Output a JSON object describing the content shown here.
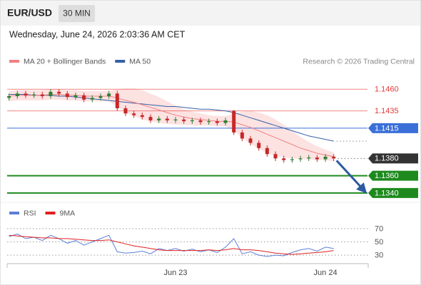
{
  "header": {
    "symbol": "EUR/USD",
    "interval": "30 MIN",
    "timestamp": "Wednesday, June 24, 2026 2:03:36 AM CET"
  },
  "chart_data": [
    {
      "type": "candlestick",
      "credit": "Research © 2026 Trading Central",
      "up_color": "#2e7d32",
      "down_color": "#c62828",
      "open": [
        1.145,
        1.1452,
        1.1455,
        1.1453,
        1.1454,
        1.1452,
        1.1457,
        1.1455,
        1.1451,
        1.1453,
        1.1448,
        1.145,
        1.1452,
        1.1455,
        1.1438,
        1.1432,
        1.143,
        1.1428,
        1.1424,
        1.1426,
        1.1424,
        1.1425,
        1.1423,
        1.1424,
        1.1422,
        1.1423,
        1.1421,
        1.1435,
        1.141,
        1.1403,
        1.1398,
        1.1392,
        1.1385,
        1.138,
        1.1378,
        1.1379,
        1.138,
        1.1381,
        1.1379,
        1.1382
      ],
      "high": [
        1.1455,
        1.1458,
        1.1458,
        1.1457,
        1.1457,
        1.146,
        1.146,
        1.1458,
        1.1456,
        1.1456,
        1.1453,
        1.1455,
        1.1458,
        1.1458,
        1.1441,
        1.1435,
        1.1433,
        1.1431,
        1.1429,
        1.1429,
        1.1428,
        1.1428,
        1.1427,
        1.1427,
        1.1426,
        1.1426,
        1.1427,
        1.1436,
        1.1413,
        1.1406,
        1.1401,
        1.1395,
        1.1388,
        1.1383,
        1.1382,
        1.1383,
        1.1384,
        1.1384,
        1.1385,
        1.1385
      ],
      "low": [
        1.1447,
        1.1449,
        1.145,
        1.145,
        1.1449,
        1.1449,
        1.1452,
        1.1448,
        1.1448,
        1.1445,
        1.1445,
        1.1447,
        1.1449,
        1.1435,
        1.1429,
        1.1427,
        1.1425,
        1.1421,
        1.1421,
        1.1421,
        1.1421,
        1.142,
        1.142,
        1.1419,
        1.1419,
        1.1418,
        1.1418,
        1.1407,
        1.14,
        1.1395,
        1.1389,
        1.1382,
        1.1377,
        1.1375,
        1.1375,
        1.1376,
        1.1377,
        1.1376,
        1.1376,
        1.1377
      ],
      "close": [
        1.1452,
        1.1455,
        1.1453,
        1.1454,
        1.1452,
        1.1457,
        1.1455,
        1.1451,
        1.1453,
        1.1448,
        1.145,
        1.1452,
        1.1455,
        1.1438,
        1.1432,
        1.143,
        1.1428,
        1.1424,
        1.1426,
        1.1424,
        1.1425,
        1.1423,
        1.1424,
        1.1422,
        1.1423,
        1.1421,
        1.1424,
        1.141,
        1.1403,
        1.1398,
        1.1392,
        1.1385,
        1.138,
        1.1378,
        1.1379,
        1.138,
        1.1381,
        1.1379,
        1.1382,
        1.138
      ],
      "series": [
        {
          "name": "MA 20 + Bollinger Bands",
          "color": "#f08080",
          "band_color": "#fde2e2",
          "values": [
            1.1452,
            1.1453,
            1.1453,
            1.1453,
            1.1453,
            1.1454,
            1.1454,
            1.1453,
            1.1453,
            1.1452,
            1.1452,
            1.1452,
            1.1452,
            1.145,
            1.1447,
            1.1445,
            1.1442,
            1.1439,
            1.1436,
            1.1433,
            1.143,
            1.1428,
            1.1426,
            1.1425,
            1.1424,
            1.1423,
            1.1423,
            1.1422,
            1.1419,
            1.1416,
            1.1412,
            1.1408,
            1.1404,
            1.14,
            1.1396,
            1.1392,
            1.1389,
            1.1386,
            1.1384,
            1.1382
          ],
          "upper": [
            1.1458,
            1.1459,
            1.1459,
            1.1459,
            1.1459,
            1.146,
            1.146,
            1.1459,
            1.1459,
            1.1458,
            1.1458,
            1.1458,
            1.1458,
            1.146,
            1.1461,
            1.1461,
            1.1459,
            1.1455,
            1.1451,
            1.1446,
            1.1441,
            1.1437,
            1.1434,
            1.1432,
            1.143,
            1.1429,
            1.1429,
            1.1432,
            1.1434,
            1.1435,
            1.1433,
            1.143,
            1.1425,
            1.1419,
            1.1412,
            1.1405,
            1.1399,
            1.1394,
            1.139,
            1.1387
          ],
          "lower": [
            1.1446,
            1.1447,
            1.1447,
            1.1447,
            1.1447,
            1.1448,
            1.1448,
            1.1447,
            1.1447,
            1.1446,
            1.1446,
            1.1446,
            1.1446,
            1.144,
            1.1433,
            1.1429,
            1.1425,
            1.1423,
            1.1421,
            1.142,
            1.1419,
            1.1419,
            1.1418,
            1.1418,
            1.1418,
            1.1417,
            1.1417,
            1.1412,
            1.1404,
            1.1397,
            1.1391,
            1.1386,
            1.1383,
            1.1381,
            1.138,
            1.1379,
            1.1379,
            1.1378,
            1.1378,
            1.1377
          ]
        },
        {
          "name": "MA 50",
          "color": "#3560a8",
          "values": [
            1.1454,
            1.1454,
            1.1454,
            1.1453,
            1.1453,
            1.1453,
            1.1452,
            1.1452,
            1.1451,
            1.145,
            1.1449,
            1.1448,
            1.1447,
            1.1446,
            1.1445,
            1.1444,
            1.1443,
            1.1442,
            1.1441,
            1.144,
            1.144,
            1.1439,
            1.1438,
            1.1437,
            1.1437,
            1.1436,
            1.1435,
            1.1433,
            1.143,
            1.1427,
            1.1424,
            1.1421,
            1.1418,
            1.1415,
            1.1412,
            1.1409,
            1.1406,
            1.1404,
            1.1402,
            1.14
          ]
        }
      ],
      "ylim": [
        1.133,
        1.148
      ],
      "levels": [
        {
          "value": 1.146,
          "label": "1.1460",
          "color": "#e53935",
          "box": false,
          "line": "solid"
        },
        {
          "value": 1.1435,
          "label": "1.1435",
          "color": "#e53935",
          "box": false,
          "line": "solid"
        },
        {
          "value": 1.1415,
          "label": "1.1415",
          "color": "#3a6fd8",
          "box": true,
          "line": "solid"
        },
        {
          "value": 1.138,
          "label": "1.1380",
          "color": "#333333",
          "box": true,
          "line": "dotted"
        },
        {
          "value": 1.136,
          "label": "1.1360",
          "color": "#1e8a1e",
          "box": true,
          "line": "thick"
        },
        {
          "value": 1.134,
          "label": "1.1340",
          "color": "#1e8a1e",
          "box": true,
          "line": "thick"
        }
      ],
      "projection_color": "#2c5aa0"
    },
    {
      "type": "line",
      "categories": [
        null,
        null,
        null,
        null,
        null,
        null,
        null,
        null,
        null,
        null,
        null,
        null,
        null,
        null,
        null,
        null,
        null,
        null,
        null,
        null,
        "Jun 23",
        null,
        null,
        null,
        null,
        null,
        null,
        null,
        null,
        null,
        null,
        null,
        null,
        null,
        null,
        null,
        null,
        null,
        "Jun 24",
        null
      ],
      "series": [
        {
          "name": "RSI",
          "color": "#5b7fd6",
          "values": [
            58,
            62,
            55,
            57,
            52,
            60,
            55,
            48,
            52,
            45,
            50,
            55,
            60,
            35,
            33,
            34,
            36,
            32,
            40,
            37,
            40,
            36,
            39,
            35,
            38,
            34,
            42,
            55,
            32,
            35,
            30,
            28,
            30,
            29,
            34,
            38,
            40,
            36,
            42,
            40
          ]
        },
        {
          "name": "9MA",
          "color": "#e02020",
          "values": [
            60,
            59,
            58,
            57,
            56,
            56,
            55,
            55,
            54,
            53,
            52,
            52,
            53,
            50,
            47,
            44,
            42,
            40,
            38,
            37,
            37,
            37,
            37,
            37,
            38,
            37,
            38,
            40,
            38,
            38,
            37,
            35,
            33,
            32,
            31,
            32,
            33,
            34,
            35,
            37
          ]
        }
      ],
      "ylim": [
        15,
        85
      ],
      "yticks": [
        70,
        50,
        30
      ],
      "grid": true
    }
  ]
}
